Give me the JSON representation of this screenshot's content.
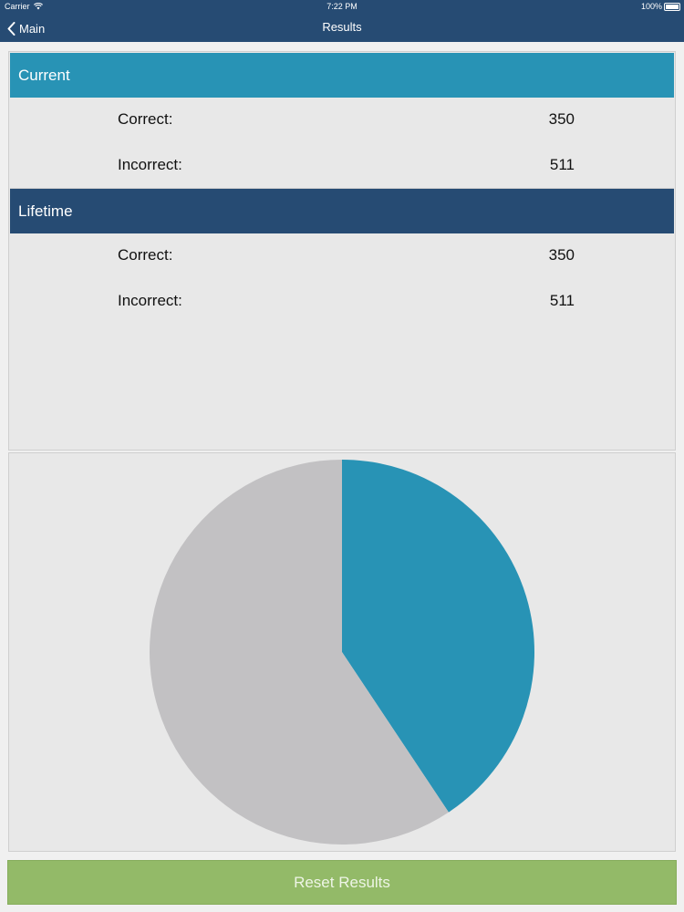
{
  "status_bar": {
    "carrier": "Carrier",
    "time": "7:22 PM",
    "battery": "100%"
  },
  "nav": {
    "back_label": "Main",
    "title": "Results"
  },
  "current": {
    "header": "Current",
    "correct_label": "Correct:",
    "correct_value": "350",
    "incorrect_label": "Incorrect:",
    "incorrect_value": "511"
  },
  "lifetime": {
    "header": "Lifetime",
    "correct_label": "Correct:",
    "correct_value": "350",
    "incorrect_label": "Incorrect:",
    "incorrect_value": "511"
  },
  "chart_data": {
    "type": "pie",
    "values": [
      350,
      511
    ],
    "colors": [
      "#2893b5",
      "#c2c1c3"
    ]
  },
  "colors": {
    "nav_bar": "#264b73",
    "current_header": "#2893b5",
    "lifetime_header": "#264b73",
    "reset_button": "#93ba68"
  },
  "reset_button": {
    "label": "Reset Results"
  }
}
